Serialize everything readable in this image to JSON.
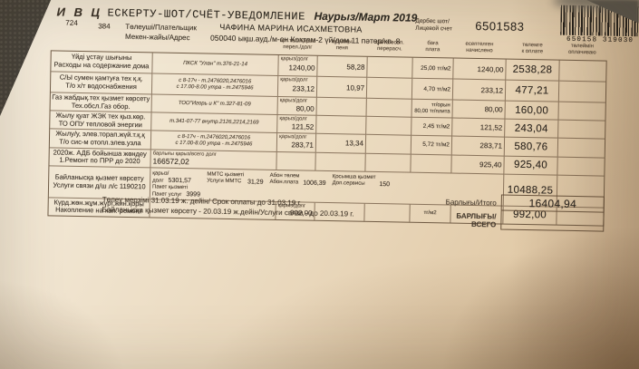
{
  "colors": {
    "paper": "#eee0c8",
    "ink": "#3b332a",
    "barcode": "#241f19",
    "shadow": "#6b4f33"
  },
  "header": {
    "org": "И В Ц",
    "org_code": "724",
    "form_code": "384",
    "title": "ЕСКЕРТУ-ШОТ/СЧЁТ-УВЕДОМЛЕНИЕ",
    "period": "Наурыз/Март 2019",
    "payer_label": "Төлеуші/Плательщик",
    "payer_name": "ЧАФИНА МАРИНА ИСАХМЕТОВНА",
    "address_label": "Мекен-жайы/Адрес",
    "address_value": "050040 ықш.ауд./м-он Коктем-2 үй/дом 11 пәтер/кв. 8",
    "account_label_kz": "Дербес шот/",
    "account_label_ru": "Лицевой счет",
    "account_number": "6501583",
    "barcode_digits": "650158 319030"
  },
  "columns": [
    {
      "kz": "арт.төл./қарыз",
      "ru": "перел./долг"
    },
    {
      "kz": "өсімақы",
      "ru": "пеня"
    },
    {
      "kz": "қайта есеп.",
      "ru": "перерасч."
    },
    {
      "kz": "баға",
      "ru": "плата"
    },
    {
      "kz": "есептелген",
      "ru": "начислено"
    },
    {
      "kz": "төлемге",
      "ru": "к оплате"
    },
    {
      "kz": "төлеймін",
      "ru": "оплачиваю"
    }
  ],
  "rows": [
    {
      "name_kz": "Үйді ұстау шығыны",
      "name_ru": "Расходы на содержание дома",
      "contact1": "ПКСК \"Улан\"  т.376-21-14",
      "debt_label": "қарыз/долг",
      "debt": "1240,00",
      "penalty": "58,28",
      "rate": "25,00 тг/м2",
      "accrued": "1240,00",
      "to_pay": "2538,28"
    },
    {
      "name_kz": "С/Ы сумен қамтуға тех қ.қ.",
      "name_ru": "Т/о х/т водоснабжения",
      "contact1": "с 8-17ч - т.2476020,2476016",
      "contact2": "с 17.00-8.00 утра - т.2475946",
      "debt_label": "қарыз/долг",
      "debt": "233,12",
      "penalty": "10,97",
      "rate": "4,70 тг/м2",
      "accrued": "233,12",
      "to_pay": "477,21"
    },
    {
      "name_kz": "Газ жабдық.тех қызмет көрсету",
      "name_ru": "Тех.обсл.Газ обор.",
      "contact1": "ТОО\"Игорь и К\" т.327-81-09",
      "debt_label": "қарыз/долг",
      "debt": "80,00",
      "penalty": "",
      "rate1": "тг/орын",
      "rate2": "80,00 тг/плита",
      "accrued": "80,00",
      "to_pay": "160,00"
    },
    {
      "name_kz": "Жылу қуат ЖЭК тех қыз.көр.",
      "name_ru": "ТО ОПУ тепловой энергии",
      "contact1": "т.341-07-77 внутр.2126,2214,2169",
      "debt_label": "қарыз/долг",
      "debt": "121,52",
      "penalty": "",
      "rate": "2,45 тг/м2",
      "accrued": "121,52",
      "to_pay": "243,04"
    },
    {
      "name_kz": "Жылу/у, элев.торап.жүй.т.қ.қ",
      "name_ru": "Т/о сис-м отопл.элев.узла",
      "contact1": "с 8-17ч - т.2476020,2476016",
      "contact2": "с 17.00-8.00 утра - т.2475946",
      "debt_label": "қарыз/долг",
      "debt": "283,71",
      "penalty": "13,34",
      "rate": "5,72 тг/м2",
      "accrued": "283,71",
      "to_pay": "580,76"
    },
    {
      "name_kz": "2020ж. АДБ бойынша жөндеу",
      "name_ru": "1.Ремонт по ПРР до 2020",
      "total_debt_label": "барлығы қарыз/всего долг",
      "total_debt": "166572,02",
      "accrued": "925,40",
      "to_pay": "925,40"
    },
    {
      "name_kz": "Байланысқа қызмет көрсету",
      "name_ru": "Услуги связи д/ш л/с 1190210"
    },
    {
      "name_kz": "Күрд.жөн.жұм.жүрг.жин.қоры",
      "name_ru": "Накопление на кап. ремонт",
      "debt_label": "қарыз/долг",
      "debt": "992,00",
      "rate": "тг/м2",
      "to_pay": "992,00"
    }
  ],
  "connection": {
    "debt_l1": "қарыз/",
    "debt_l2": "долг",
    "debt_value": "5301,57",
    "pkg_l1": "Пакет қызметі",
    "pkg_l2": "Пакет услуг",
    "pkg_value": "3999",
    "mmts_l1": "ММТС қызметі",
    "mmts_l2": "Услуги ММТС",
    "mmts_value": "31,29",
    "abon_l1": "Абон төлем",
    "abon_l2": "Абон.плата",
    "abon_value": "1006,39",
    "extra_l1": "Қосымша қызмет",
    "extra_l2": "Доп.сервисы",
    "extra_value": "150",
    "to_pay": "10488,25"
  },
  "totals": {
    "row1_label": "Барлығы/Итого",
    "row1_value": "16404,94",
    "row2_label_line1": "БАРЛЫҒЫ/",
    "row2_label_line2": "ВСЕГО"
  },
  "footer": {
    "line1": "Төлеу мерзімі  31.03.19 ж. дейін/ Срок оплаты до 31.03.19 г.",
    "line2": "Байланысқа қызмет көрсету - 20.03.19 ж.дейін/Услуги связи - до 20.03.19 г."
  }
}
